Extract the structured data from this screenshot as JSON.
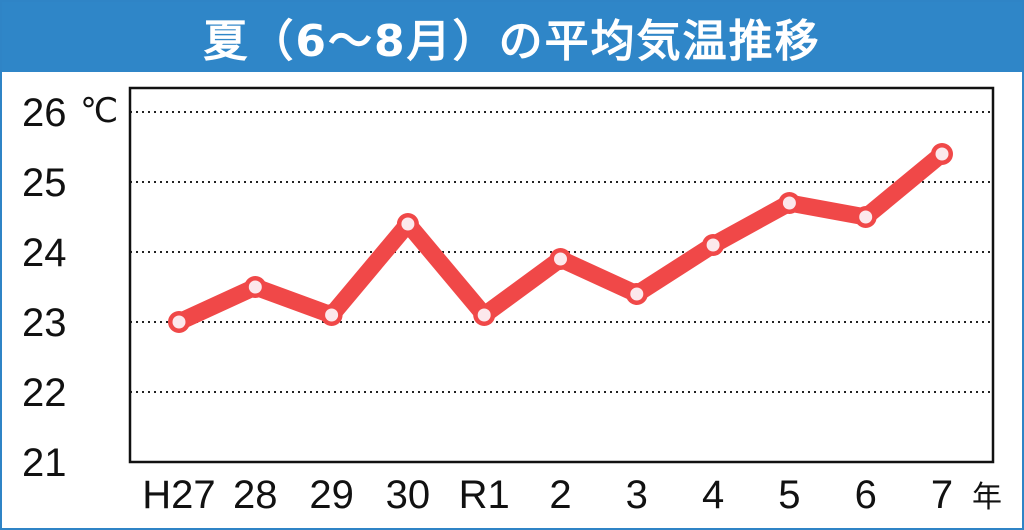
{
  "header": {
    "title": "夏（6～8月）の平均気温推移"
  },
  "chart_data": {
    "type": "line",
    "title": "夏（6～8月）の平均気温推移",
    "categories": [
      "H27",
      "28",
      "29",
      "30",
      "R1",
      "2",
      "3",
      "4",
      "5",
      "6",
      "7"
    ],
    "series": [
      {
        "values": [
          23.0,
          23.5,
          23.1,
          24.4,
          23.1,
          23.9,
          23.4,
          24.1,
          24.7,
          24.5,
          25.4
        ]
      }
    ],
    "ylim": [
      21,
      26
    ],
    "yticks": [
      "21",
      "22",
      "23",
      "24",
      "25",
      "26"
    ],
    "y_unit": "℃",
    "x_unit": "年",
    "grid": "horizontal dotted",
    "colors": {
      "line": "#f04848",
      "marker_fill": "#fce8ec",
      "frame": "#2f84c6",
      "title_bg": "#2f86c8",
      "title_text": "#ffffff",
      "grid": "#222222"
    }
  }
}
